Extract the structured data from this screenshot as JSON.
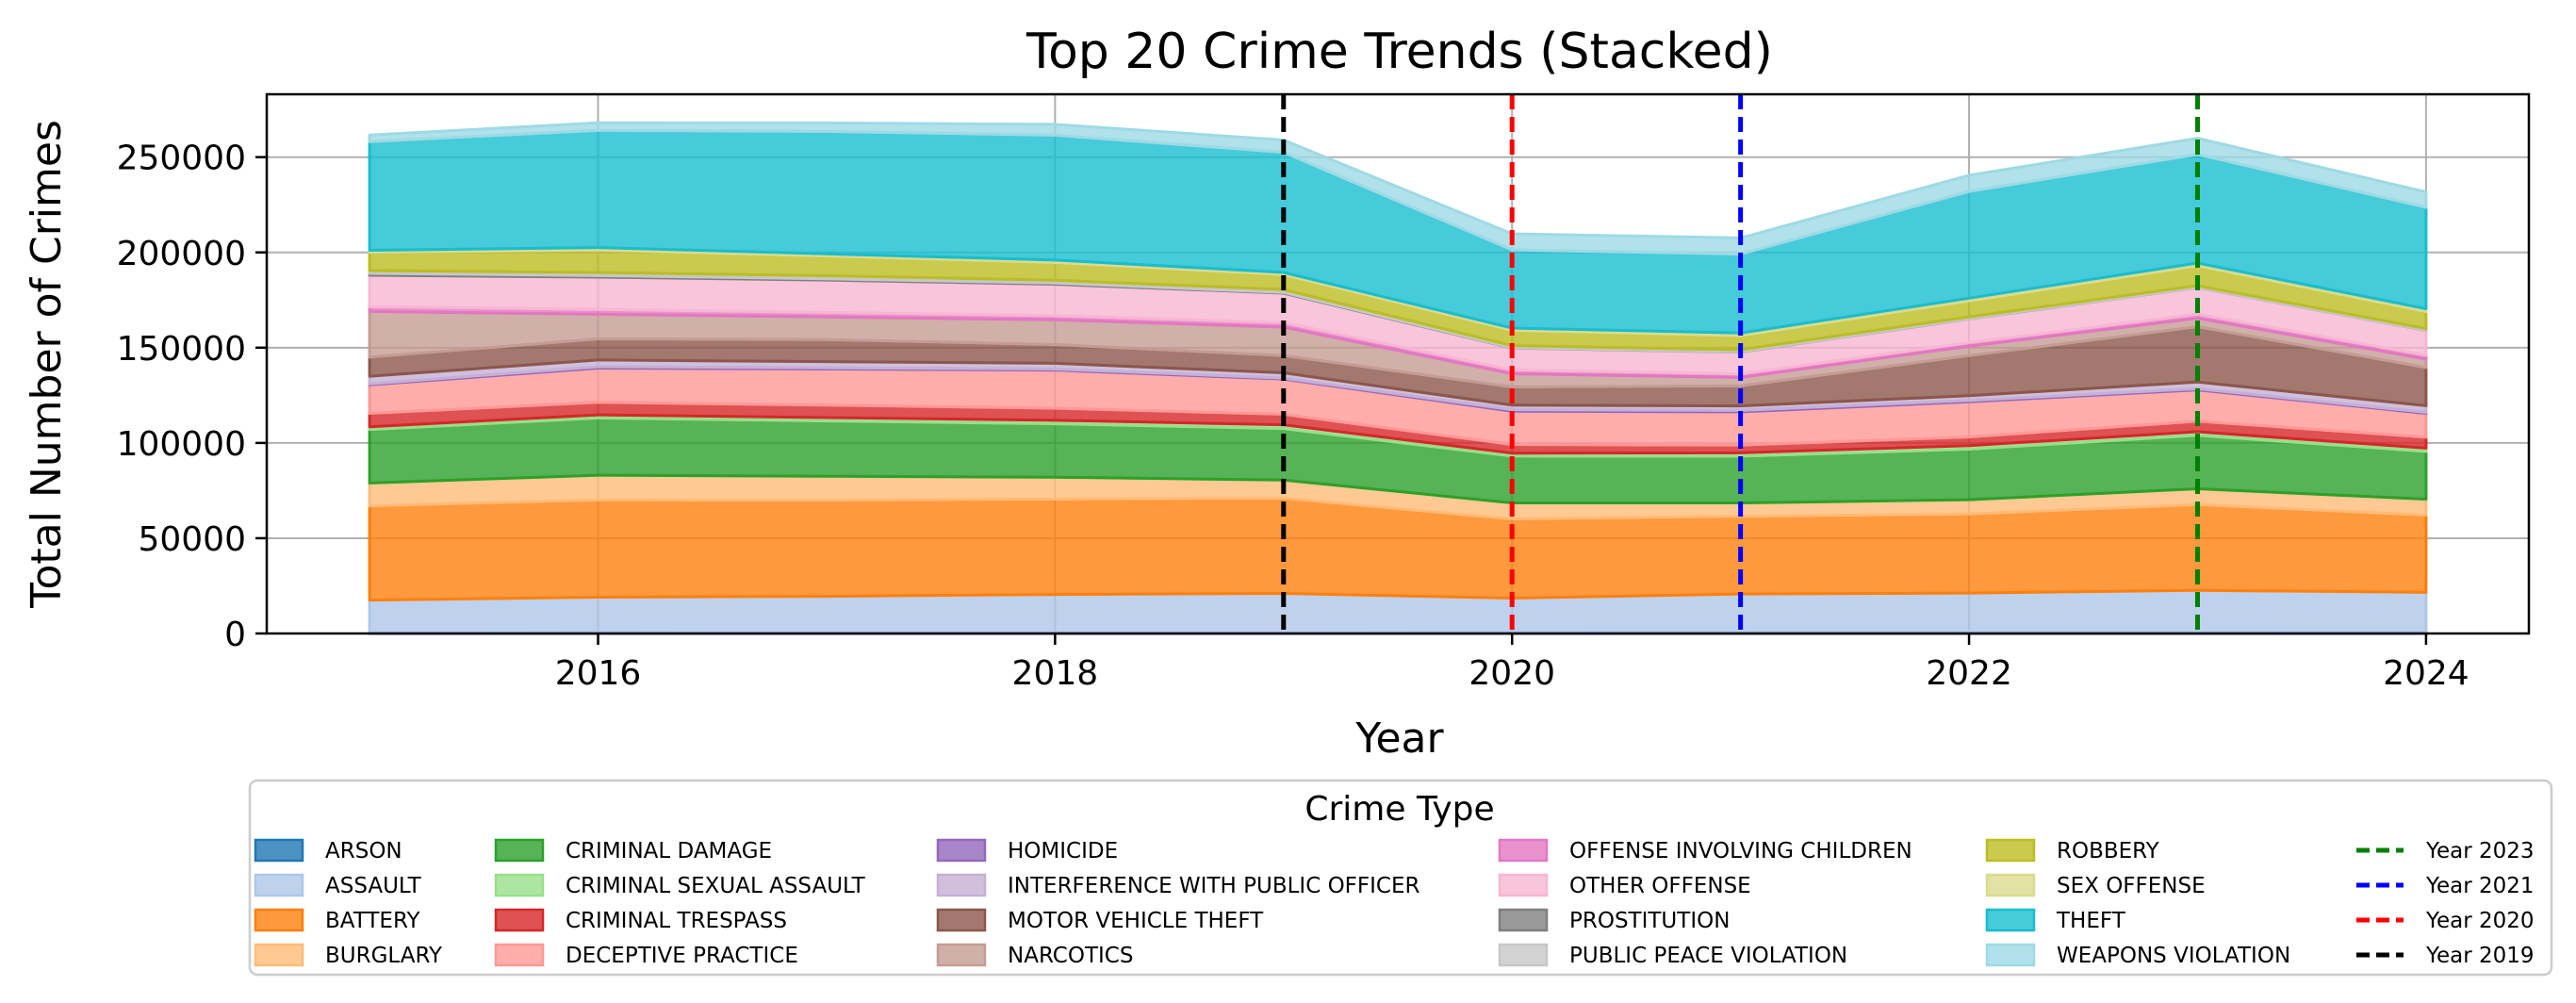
{
  "chart_data": {
    "type": "area",
    "stacked": true,
    "title": "Top 20 Crime Trends (Stacked)",
    "xlabel": "Year",
    "ylabel": "Total Number of Crimes",
    "x": [
      2015,
      2016,
      2017,
      2018,
      2019,
      2020,
      2021,
      2022,
      2023,
      2024
    ],
    "xlim": [
      2014.55,
      2024.45
    ],
    "ylim": [
      0,
      283000
    ],
    "xticks": [
      2016,
      2018,
      2020,
      2022,
      2024
    ],
    "yticks": [
      0,
      50000,
      100000,
      150000,
      200000,
      250000
    ],
    "grid": true,
    "legend_title": "Crime Type",
    "legend_position": "below",
    "series": [
      {
        "name": "ARSON",
        "color": "#1f77b4",
        "values": [
          500,
          550,
          500,
          500,
          500,
          550,
          700,
          700,
          650,
          600
        ]
      },
      {
        "name": "ASSAULT",
        "color": "#aec7e8",
        "values": [
          17000,
          18500,
          19000,
          20000,
          20500,
          18000,
          20000,
          20500,
          22000,
          21000
        ]
      },
      {
        "name": "BATTERY",
        "color": "#ff7f0e",
        "values": [
          49500,
          51000,
          50500,
          50000,
          50000,
          41500,
          40800,
          41500,
          45000,
          40500
        ]
      },
      {
        "name": "BURGLARY",
        "color": "#ffbb78",
        "values": [
          12000,
          13000,
          12500,
          11500,
          9500,
          8500,
          7000,
          7500,
          8300,
          8400
        ]
      },
      {
        "name": "CRIMINAL DAMAGE",
        "color": "#2ca02c",
        "values": [
          28000,
          30000,
          29000,
          28000,
          27000,
          24500,
          24500,
          26500,
          28000,
          25000
        ]
      },
      {
        "name": "CRIMINAL SEXUAL ASSAULT",
        "color": "#98df8a",
        "values": [
          1500,
          1700,
          1800,
          1900,
          2000,
          1600,
          1800,
          1900,
          1900,
          1800
        ]
      },
      {
        "name": "CRIMINAL TRESPASS",
        "color": "#d62728",
        "values": [
          7000,
          6500,
          6500,
          6300,
          5500,
          4500,
          4000,
          4500,
          5500,
          5700
        ]
      },
      {
        "name": "DECEPTIVE PRACTICE",
        "color": "#ff9896",
        "values": [
          15000,
          18000,
          19000,
          20000,
          18500,
          17500,
          17500,
          18500,
          16500,
          12500
        ]
      },
      {
        "name": "HOMICIDE",
        "color": "#9467bd",
        "values": [
          500,
          780,
          660,
          600,
          500,
          780,
          800,
          700,
          620,
          560
        ]
      },
      {
        "name": "INTERFERENCE WITH PUBLIC OFFICER",
        "color": "#c5b0d5",
        "values": [
          4000,
          3500,
          3200,
          3000,
          2800,
          2400,
          2300,
          2500,
          3500,
          3500
        ]
      },
      {
        "name": "MOTOR VEHICLE THEFT",
        "color": "#8c564b",
        "values": [
          10000,
          11000,
          11500,
          9800,
          9000,
          9500,
          10500,
          21000,
          29000,
          20000
        ]
      },
      {
        "name": "NARCOTICS",
        "color": "#c49c94",
        "values": [
          24000,
          13000,
          12000,
          13000,
          15000,
          7000,
          4500,
          5000,
          4500,
          4500
        ]
      },
      {
        "name": "OFFENSE INVOLVING CHILDREN",
        "color": "#e377c2",
        "values": [
          2500,
          2500,
          2300,
          2200,
          2300,
          2000,
          1800,
          1800,
          2100,
          2000
        ]
      },
      {
        "name": "OTHER OFFENSE",
        "color": "#f7b6d2",
        "values": [
          16500,
          17000,
          17000,
          16500,
          15500,
          11500,
          11500,
          12500,
          14000,
          13000
        ]
      },
      {
        "name": "PROSTITUTION",
        "color": "#7f7f7f",
        "values": [
          1000,
          800,
          700,
          600,
          400,
          150,
          100,
          80,
          70,
          60
        ]
      },
      {
        "name": "PUBLIC PEACE VIOLATION",
        "color": "#c7c7c7",
        "values": [
          1500,
          1600,
          1600,
          1500,
          1500,
          1100,
          1100,
          1000,
          900,
          900
        ]
      },
      {
        "name": "ROBBERY",
        "color": "#bcbd22",
        "values": [
          9600,
          11800,
          10300,
          9300,
          7800,
          8000,
          7400,
          8300,
          10400,
          8900
        ]
      },
      {
        "name": "SEX OFFENSE",
        "color": "#dbdb8d",
        "values": [
          1000,
          1300,
          1200,
          1300,
          1200,
          1200,
          1400,
          1500,
          1500,
          1500
        ]
      },
      {
        "name": "THEFT",
        "color": "#17becf",
        "values": [
          57000,
          61500,
          64200,
          65500,
          63000,
          41000,
          41400,
          56000,
          57000,
          53200
        ]
      },
      {
        "name": "WEAPONS VIOLATION",
        "color": "#9edae5",
        "values": [
          3500,
          4000,
          4500,
          5700,
          6500,
          8500,
          8500,
          8500,
          8500,
          8100
        ]
      }
    ],
    "reference_lines": [
      {
        "label": "Year 2023",
        "x": 2023,
        "color": "#008000"
      },
      {
        "label": "Year 2021",
        "x": 2021,
        "color": "#0000ff"
      },
      {
        "label": "Year 2020",
        "x": 2020,
        "color": "#ff0000"
      },
      {
        "label": "Year 2019",
        "x": 2019,
        "color": "#000000"
      }
    ]
  }
}
